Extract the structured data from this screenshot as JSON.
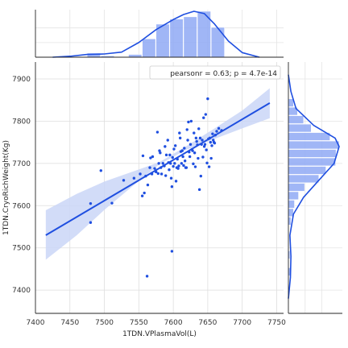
{
  "chart_data": {
    "type": "scatter",
    "xlabel": "1TDN.VPlasmaVol(L)",
    "ylabel": "1TDN.CryoRichWeight(Kg)",
    "xlim": [
      7400,
      7760
    ],
    "ylim": [
      7345,
      7940
    ],
    "xticks": [
      7400,
      7450,
      7500,
      7550,
      7600,
      7650,
      7700,
      7750
    ],
    "yticks": [
      7400,
      7500,
      7600,
      7700,
      7800,
      7900
    ],
    "grid": true,
    "annotation": "pearsonr = 0.63; p = 4.7e-14",
    "annotation_location": "top-right",
    "color": "#1f4fe0",
    "band_color": "#cad6f7",
    "hist_color": "#8fa9f5",
    "points": [
      [
        7480,
        7560
      ],
      [
        7480,
        7605
      ],
      [
        7495,
        7683
      ],
      [
        7511,
        7606
      ],
      [
        7528,
        7660
      ],
      [
        7543,
        7665
      ],
      [
        7552,
        7675
      ],
      [
        7555,
        7623
      ],
      [
        7556,
        7718
      ],
      [
        7558,
        7630
      ],
      [
        7560,
        7670
      ],
      [
        7562,
        7433
      ],
      [
        7563,
        7649
      ],
      [
        7566,
        7690
      ],
      [
        7567,
        7713
      ],
      [
        7569,
        7675
      ],
      [
        7570,
        7716
      ],
      [
        7573,
        7688
      ],
      [
        7575,
        7680
      ],
      [
        7577,
        7774
      ],
      [
        7578,
        7676
      ],
      [
        7579,
        7700
      ],
      [
        7580,
        7730
      ],
      [
        7581,
        7725
      ],
      [
        7582,
        7690
      ],
      [
        7583,
        7675
      ],
      [
        7585,
        7700
      ],
      [
        7587,
        7694
      ],
      [
        7588,
        7740
      ],
      [
        7589,
        7671
      ],
      [
        7590,
        7720
      ],
      [
        7592,
        7755
      ],
      [
        7593,
        7702
      ],
      [
        7594,
        7685
      ],
      [
        7595,
        7720
      ],
      [
        7596,
        7700
      ],
      [
        7597,
        7665
      ],
      [
        7598,
        7492
      ],
      [
        7598,
        7645
      ],
      [
        7599,
        7714
      ],
      [
        7600,
        7693
      ],
      [
        7601,
        7734
      ],
      [
        7602,
        7700
      ],
      [
        7603,
        7742
      ],
      [
        7604,
        7658
      ],
      [
        7605,
        7690
      ],
      [
        7606,
        7710
      ],
      [
        7607,
        7688
      ],
      [
        7608,
        7694
      ],
      [
        7609,
        7772
      ],
      [
        7610,
        7760
      ],
      [
        7611,
        7728
      ],
      [
        7612,
        7700
      ],
      [
        7613,
        7730
      ],
      [
        7614,
        7716
      ],
      [
        7615,
        7695
      ],
      [
        7616,
        7736
      ],
      [
        7617,
        7706
      ],
      [
        7618,
        7690
      ],
      [
        7619,
        7690
      ],
      [
        7620,
        7780
      ],
      [
        7621,
        7755
      ],
      [
        7622,
        7798
      ],
      [
        7623,
        7727
      ],
      [
        7624,
        7716
      ],
      [
        7625,
        7745
      ],
      [
        7626,
        7800
      ],
      [
        7627,
        7733
      ],
      [
        7628,
        7730
      ],
      [
        7629,
        7699
      ],
      [
        7630,
        7772
      ],
      [
        7631,
        7725
      ],
      [
        7632,
        7692
      ],
      [
        7633,
        7760
      ],
      [
        7634,
        7752
      ],
      [
        7635,
        7744
      ],
      [
        7636,
        7712
      ],
      [
        7637,
        7782
      ],
      [
        7638,
        7638
      ],
      [
        7639,
        7760
      ],
      [
        7640,
        7670
      ],
      [
        7641,
        7745
      ],
      [
        7642,
        7755
      ],
      [
        7643,
        7715
      ],
      [
        7644,
        7808
      ],
      [
        7645,
        7740
      ],
      [
        7646,
        7745
      ],
      [
        7647,
        7816
      ],
      [
        7648,
        7732
      ],
      [
        7649,
        7701
      ],
      [
        7650,
        7853
      ],
      [
        7651,
        7758
      ],
      [
        7652,
        7692
      ],
      [
        7653,
        7760
      ],
      [
        7654,
        7750
      ],
      [
        7655,
        7712
      ],
      [
        7656,
        7742
      ],
      [
        7657,
        7770
      ],
      [
        7658,
        7755
      ],
      [
        7659,
        7750
      ],
      [
        7660,
        7748
      ],
      [
        7661,
        7767
      ],
      [
        7663,
        7776
      ],
      [
        7666,
        7783
      ],
      [
        7670,
        7778
      ]
    ],
    "regression": {
      "x_start": 7415,
      "x_end": 7740,
      "y_start": 7530,
      "y_end": 7843
    },
    "confidence_band": {
      "x": [
        7415,
        7460,
        7500,
        7540,
        7580,
        7620,
        7660,
        7700,
        7740
      ],
      "lower": [
        7472,
        7530,
        7590,
        7645,
        7698,
        7733,
        7758,
        7783,
        7807
      ],
      "upper": [
        7589,
        7628,
        7657,
        7680,
        7703,
        7742,
        7783,
        7825,
        7878
      ]
    },
    "x_hist": {
      "bin_edges": [
        7475,
        7495,
        7515,
        7535,
        7555,
        7575,
        7595,
        7615,
        7635,
        7655,
        7675
      ],
      "heights": [
        0.09,
        0.03,
        0.0,
        0.06,
        0.4,
        0.72,
        0.83,
        0.88,
        1.0,
        0.65
      ]
    },
    "x_kde": {
      "x": [
        7425,
        7450,
        7475,
        7500,
        7525,
        7550,
        7575,
        7600,
        7615,
        7630,
        7645,
        7660,
        7680,
        7700,
        7725
      ],
      "density": [
        0.0,
        0.02,
        0.06,
        0.07,
        0.11,
        0.32,
        0.6,
        0.82,
        0.93,
        1.0,
        0.95,
        0.72,
        0.35,
        0.1,
        0.0
      ]
    },
    "y_hist": {
      "bin_edges": [
        7433,
        7453,
        7473,
        7493,
        7513,
        7533,
        7553,
        7573,
        7593,
        7613,
        7633,
        7653,
        7673,
        7693,
        7713,
        7733,
        7753,
        7773,
        7793,
        7813,
        7833,
        7853
      ],
      "heights": [
        0.04,
        0.0,
        0.03,
        0.0,
        0.0,
        0.0,
        0.05,
        0.1,
        0.12,
        0.2,
        0.32,
        0.6,
        0.74,
        0.93,
        0.94,
        1.0,
        0.82,
        0.45,
        0.3,
        0.18,
        0.1
      ]
    },
    "y_kde": {
      "y": [
        7380,
        7430,
        7480,
        7530,
        7580,
        7620,
        7660,
        7700,
        7740,
        7760,
        7790,
        7830,
        7870,
        7910
      ],
      "density": [
        0.0,
        0.04,
        0.05,
        0.03,
        0.1,
        0.3,
        0.6,
        0.9,
        1.0,
        0.92,
        0.5,
        0.15,
        0.05,
        0.0
      ]
    }
  }
}
